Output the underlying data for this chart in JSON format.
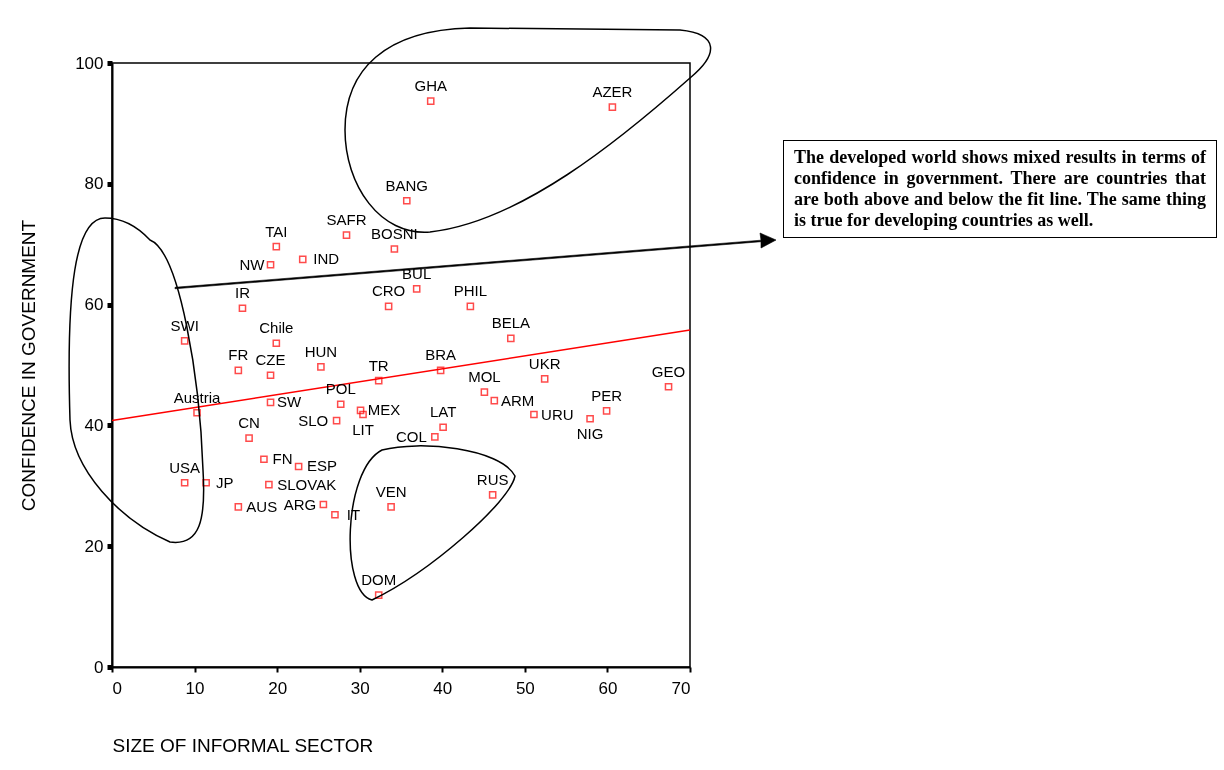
{
  "chart_data": {
    "type": "scatter",
    "xlabel": "SIZE OF INFORMAL SECTOR",
    "ylabel": "CONFIDENCE IN GOVERNMENT",
    "xlim": [
      0,
      70
    ],
    "ylim": [
      0,
      100
    ],
    "xticks": [
      0,
      10,
      20,
      30,
      40,
      50,
      60,
      70
    ],
    "yticks": [
      0,
      20,
      40,
      60,
      80,
      100
    ],
    "marker": "square",
    "annotations": [
      "The developed world shows mixed results in terms of  confidence in government. There are countries that are both above and below the fit line.  The same thing is true for developing countries as well."
    ],
    "series": [
      {
        "name": "GHA",
        "color": "#ff0000",
        "x": [
          38.6
        ],
        "values": [
          93.7
        ]
      },
      {
        "name": "AZER",
        "color": "#ff0000",
        "x": [
          60.6
        ],
        "values": [
          92.7
        ]
      },
      {
        "name": "BANG",
        "color": "#ff0000",
        "x": [
          35.7
        ],
        "values": [
          77.2
        ]
      },
      {
        "name": "TAI",
        "color": "#ff0000",
        "x": [
          19.9
        ],
        "values": [
          69.6
        ]
      },
      {
        "name": "NW",
        "color": "#ff0000",
        "x": [
          19.2
        ],
        "values": [
          66.6
        ]
      },
      {
        "name": "IND",
        "color": "#ff0000",
        "x": [
          23.1
        ],
        "values": [
          67.5
        ]
      },
      {
        "name": "SAFR",
        "color": "#ff0000",
        "x": [
          28.4
        ],
        "values": [
          71.5
        ]
      },
      {
        "name": "BOSNI",
        "color": "#ff0000",
        "x": [
          34.2
        ],
        "values": [
          69.2
        ]
      },
      {
        "name": "BUL",
        "color": "#ff0000",
        "x": [
          36.9
        ],
        "values": [
          62.6
        ]
      },
      {
        "name": "IR",
        "color": "#ff0000",
        "x": [
          15.8
        ],
        "values": [
          59.4
        ]
      },
      {
        "name": "CRO",
        "color": "#ff0000",
        "x": [
          33.5
        ],
        "values": [
          59.7
        ]
      },
      {
        "name": "PHIL",
        "color": "#ff0000",
        "x": [
          43.4
        ],
        "values": [
          59.7
        ]
      },
      {
        "name": "SWI",
        "color": "#ff0000",
        "x": [
          8.8
        ],
        "values": [
          54.0
        ]
      },
      {
        "name": "Chile",
        "color": "#ff0000",
        "x": [
          19.9
        ],
        "values": [
          53.6
        ]
      },
      {
        "name": "BELA",
        "color": "#ff0000",
        "x": [
          48.3
        ],
        "values": [
          54.4
        ]
      },
      {
        "name": "FR",
        "color": "#ff0000",
        "x": [
          15.3
        ],
        "values": [
          49.1
        ]
      },
      {
        "name": "CZE",
        "color": "#ff0000",
        "x": [
          19.2
        ],
        "values": [
          48.3
        ]
      },
      {
        "name": "HUN",
        "color": "#ff0000",
        "x": [
          25.3
        ],
        "values": [
          49.7
        ]
      },
      {
        "name": "TR",
        "color": "#ff0000",
        "x": [
          32.3
        ],
        "values": [
          47.4
        ]
      },
      {
        "name": "BRA",
        "color": "#ff0000",
        "x": [
          39.8
        ],
        "values": [
          49.1
        ]
      },
      {
        "name": "UKR",
        "color": "#ff0000",
        "x": [
          52.4
        ],
        "values": [
          47.7
        ]
      },
      {
        "name": "GEO",
        "color": "#ff0000",
        "x": [
          67.4
        ],
        "values": [
          46.4
        ]
      },
      {
        "name": "SW",
        "color": "#ff0000",
        "x": [
          19.2
        ],
        "values": [
          43.8
        ]
      },
      {
        "name": "Austria",
        "color": "#ff0000",
        "x": [
          10.3
        ],
        "values": [
          42.1
        ]
      },
      {
        "name": "POL",
        "color": "#ff0000",
        "x": [
          27.7
        ],
        "values": [
          43.5
        ]
      },
      {
        "name": "SLO",
        "color": "#ff0000",
        "x": [
          27.2
        ],
        "values": [
          40.8
        ]
      },
      {
        "name": "MEX",
        "color": "#ff0000",
        "x": [
          30.1
        ],
        "values": [
          42.5
        ]
      },
      {
        "name": "LIT",
        "color": "#ff0000",
        "x": [
          30.4
        ],
        "values": [
          41.8
        ]
      },
      {
        "name": "MOL",
        "color": "#ff0000",
        "x": [
          45.1
        ],
        "values": [
          45.5
        ]
      },
      {
        "name": "ARM",
        "color": "#ff0000",
        "x": [
          46.3
        ],
        "values": [
          44.1
        ]
      },
      {
        "name": "URU",
        "color": "#ff0000",
        "x": [
          51.1
        ],
        "values": [
          41.8
        ]
      },
      {
        "name": "NIG",
        "color": "#ff0000",
        "x": [
          57.9
        ],
        "values": [
          41.1
        ]
      },
      {
        "name": "PER",
        "color": "#ff0000",
        "x": [
          59.9
        ],
        "values": [
          42.4
        ]
      },
      {
        "name": "LAT",
        "color": "#ff0000",
        "x": [
          40.1
        ],
        "values": [
          39.7
        ]
      },
      {
        "name": "COL",
        "color": "#ff0000",
        "x": [
          39.1
        ],
        "values": [
          38.1
        ]
      },
      {
        "name": "CN",
        "color": "#ff0000",
        "x": [
          16.6
        ],
        "values": [
          37.9
        ]
      },
      {
        "name": "FN",
        "color": "#ff0000",
        "x": [
          18.4
        ],
        "values": [
          34.4
        ]
      },
      {
        "name": "ESP",
        "color": "#ff0000",
        "x": [
          22.6
        ],
        "values": [
          33.2
        ]
      },
      {
        "name": "USA",
        "color": "#ff0000",
        "x": [
          8.8
        ],
        "values": [
          30.5
        ]
      },
      {
        "name": "JP",
        "color": "#ff0000",
        "x": [
          11.4
        ],
        "values": [
          30.5
        ]
      },
      {
        "name": "SLOVAK",
        "color": "#ff0000",
        "x": [
          19.0
        ],
        "values": [
          30.2
        ]
      },
      {
        "name": "AUS",
        "color": "#ff0000",
        "x": [
          15.3
        ],
        "values": [
          26.5
        ]
      },
      {
        "name": "ARG",
        "color": "#ff0000",
        "x": [
          25.6
        ],
        "values": [
          26.9
        ]
      },
      {
        "name": "IT",
        "color": "#ff0000",
        "x": [
          27.0
        ],
        "values": [
          25.2
        ]
      },
      {
        "name": "VEN",
        "color": "#ff0000",
        "x": [
          33.8
        ],
        "values": [
          26.5
        ]
      },
      {
        "name": "RUS",
        "color": "#ff0000",
        "x": [
          46.1
        ],
        "values": [
          28.5
        ]
      },
      {
        "name": "DOM",
        "color": "#ff0000",
        "x": [
          32.3
        ],
        "values": [
          11.9
        ]
      },
      {
        "type": "line",
        "marker": "none",
        "color": "#ff0000",
        "x": [
          0,
          70
        ],
        "values": [
          40.8,
          55.8
        ]
      }
    ]
  }
}
